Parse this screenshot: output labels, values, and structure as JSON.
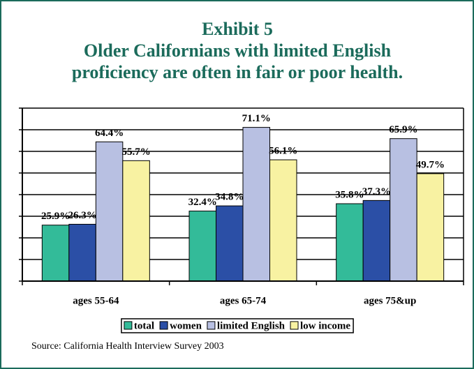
{
  "chart_data": {
    "type": "bar",
    "title": "Exhibit 5",
    "subtitle": [
      "Older Californians with limited English",
      "proficiency are often in fair or poor health."
    ],
    "categories": [
      "ages 55-64",
      "ages 65-74",
      "ages 75&up"
    ],
    "series": [
      {
        "name": "total",
        "color": "#33bb99",
        "values": [
          25.9,
          32.4,
          35.8
        ],
        "value_labels": [
          "25.9%",
          "32.4%",
          "35.8%"
        ]
      },
      {
        "name": "women",
        "color": "#2b4fa6",
        "values": [
          26.3,
          34.8,
          37.3
        ],
        "value_labels": [
          "26.3%",
          "34.8%",
          "37.3%"
        ]
      },
      {
        "name": "limited English",
        "color": "#b8c0e2",
        "values": [
          64.4,
          71.1,
          65.9
        ],
        "value_labels": [
          "64.4%",
          "71.1%",
          "65.9%"
        ]
      },
      {
        "name": "low income",
        "color": "#f8f2a2",
        "values": [
          55.7,
          56.1,
          49.7
        ],
        "value_labels": [
          "55.7%",
          "56.1%",
          "49.7%"
        ]
      }
    ],
    "ylim": [
      0,
      80
    ],
    "yticks": [
      0,
      10,
      20,
      30,
      40,
      50,
      60,
      70,
      80
    ],
    "grid": true,
    "legend": "bottom",
    "source": "Source: California Health Interview Survey 2003"
  }
}
